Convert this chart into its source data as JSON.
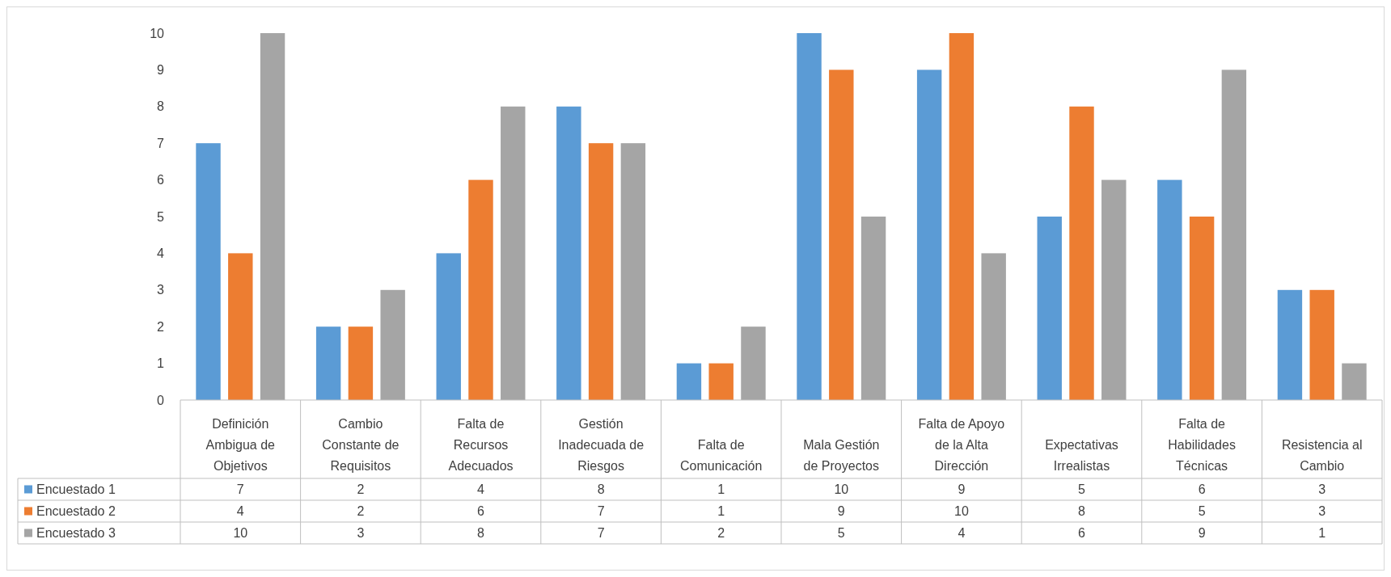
{
  "chart_data": {
    "type": "bar",
    "categories": [
      "Definición Ambigua de Objetivos",
      "Cambio Constante de Requisitos",
      "Falta de Recursos Adecuados",
      "Gestión Inadecuada de Riesgos",
      "Falta de Comunicación",
      "Mala Gestión de Proyectos",
      "Falta de Apoyo de la Alta Dirección",
      "Expectativas Irrealistas",
      "Falta de Habilidades Técnicas",
      "Resistencia al Cambio"
    ],
    "series": [
      {
        "name": "Encuestado 1",
        "color": "#5b9bd5",
        "values": [
          7,
          2,
          4,
          8,
          1,
          10,
          9,
          5,
          6,
          3
        ]
      },
      {
        "name": "Encuestado 2",
        "color": "#ed7d31",
        "values": [
          4,
          2,
          6,
          7,
          1,
          9,
          10,
          8,
          5,
          3
        ]
      },
      {
        "name": "Encuestado 3",
        "color": "#a5a5a5",
        "values": [
          10,
          3,
          8,
          7,
          2,
          5,
          4,
          6,
          9,
          1
        ]
      }
    ],
    "ylim": [
      0,
      10
    ],
    "yticks": [
      0,
      1,
      2,
      3,
      4,
      5,
      6,
      7,
      8,
      9,
      10
    ],
    "data_labels": true,
    "legend": "bottom"
  }
}
